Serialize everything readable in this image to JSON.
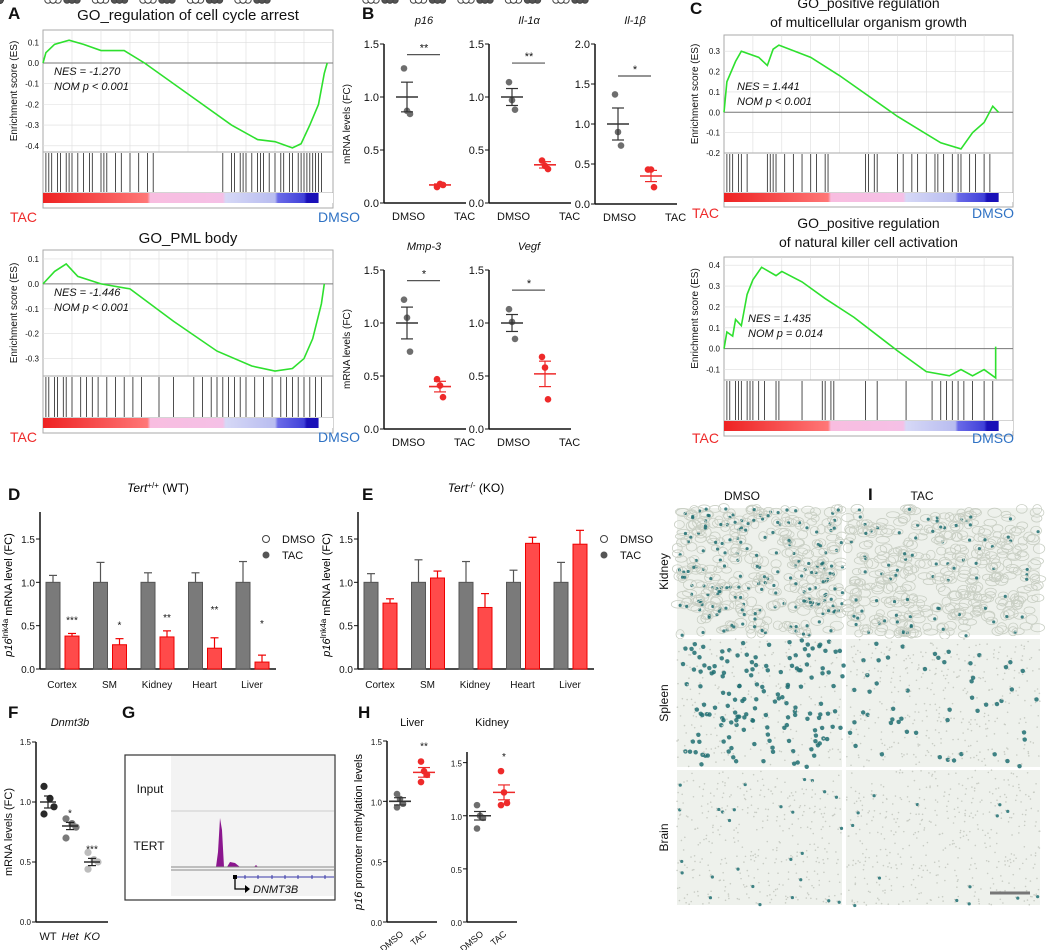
{
  "panel_labels": [
    "A",
    "B",
    "C",
    "D",
    "E",
    "F",
    "G",
    "H",
    "I"
  ],
  "colors": {
    "tac": "#ee2a2a",
    "dmso_text": "#2f72c4",
    "es_line": "#2ee02e",
    "dmso_point": "#6e6e6e",
    "bar_gray": "#7a7a7a",
    "bar_red": "#ff4a4a",
    "purple": "#8b168e",
    "stain": "#1f6e72"
  },
  "gsea": [
    {
      "title": [
        "GO_regulation of cell cycle arrest"
      ],
      "ylabel": "Enrichment score (ES)",
      "nes": "NES = -1.270",
      "nom": "NOM p < 0.001",
      "left": "TAC",
      "right": "DMSO",
      "ticks": [
        "0.1",
        "0.0",
        "-0.1",
        "-0.2",
        "-0.3",
        "-0.4"
      ],
      "ylim": [
        -0.43,
        0.14
      ],
      "curve": [
        [
          0,
          0
        ],
        [
          0.01,
          0.05
        ],
        [
          0.04,
          0.09
        ],
        [
          0.09,
          0.11
        ],
        [
          0.14,
          0.09
        ],
        [
          0.2,
          0.06
        ],
        [
          0.28,
          0.06
        ],
        [
          0.35,
          0.0
        ],
        [
          0.5,
          -0.15
        ],
        [
          0.65,
          -0.3
        ],
        [
          0.74,
          -0.37
        ],
        [
          0.8,
          -0.38
        ],
        [
          0.86,
          -0.41
        ],
        [
          0.89,
          -0.39
        ],
        [
          0.92,
          -0.3
        ],
        [
          0.95,
          -0.2
        ],
        [
          0.97,
          -0.05
        ],
        [
          0.98,
          0
        ]
      ],
      "hits": [
        0.01,
        0.02,
        0.03,
        0.05,
        0.06,
        0.08,
        0.09,
        0.1,
        0.12,
        0.14,
        0.16,
        0.17,
        0.2,
        0.21,
        0.22,
        0.25,
        0.27,
        0.3,
        0.33,
        0.36,
        0.38,
        0.62,
        0.65,
        0.66,
        0.68,
        0.69,
        0.7,
        0.72,
        0.74,
        0.75,
        0.76,
        0.78,
        0.8,
        0.82,
        0.83,
        0.85,
        0.86,
        0.88,
        0.89,
        0.9,
        0.91,
        0.92,
        0.93,
        0.94,
        0.95,
        0.96
      ]
    },
    {
      "title": [
        "GO_PML body"
      ],
      "ylabel": "Enrichment score (ES)",
      "nes": "NES = -1.446",
      "nom": "NOM p < 0.001",
      "left": "TAC",
      "right": "DMSO",
      "ticks": [
        "0.1",
        "0.0",
        "-0.1",
        "-0.2",
        "-0.3"
      ],
      "ylim": [
        -0.37,
        0.12
      ],
      "curve": [
        [
          0,
          0
        ],
        [
          0.04,
          0.05
        ],
        [
          0.08,
          0.08
        ],
        [
          0.12,
          0.03
        ],
        [
          0.2,
          0.0
        ],
        [
          0.3,
          -0.02
        ],
        [
          0.45,
          -0.15
        ],
        [
          0.6,
          -0.27
        ],
        [
          0.72,
          -0.33
        ],
        [
          0.8,
          -0.35
        ],
        [
          0.86,
          -0.34
        ],
        [
          0.9,
          -0.3
        ],
        [
          0.93,
          -0.22
        ],
        [
          0.96,
          -0.08
        ],
        [
          0.97,
          0
        ]
      ],
      "hits": [
        0.01,
        0.02,
        0.04,
        0.05,
        0.07,
        0.08,
        0.1,
        0.13,
        0.15,
        0.17,
        0.19,
        0.22,
        0.25,
        0.28,
        0.31,
        0.34,
        0.4,
        0.45,
        0.52,
        0.55,
        0.58,
        0.6,
        0.62,
        0.64,
        0.66,
        0.68,
        0.7,
        0.73,
        0.76,
        0.79,
        0.82,
        0.84,
        0.86,
        0.88,
        0.9,
        0.92,
        0.94,
        0.96
      ]
    },
    {
      "title": [
        "GO_positive regulation",
        "of multicellular organism growth"
      ],
      "ylabel": "Enrichment score (ES)",
      "nes": "NES = 1.441",
      "nom": "NOM p < 0.001",
      "left": "TAC",
      "right": "DMSO",
      "ticks": [
        "0.3",
        "0.2",
        "0.1",
        "0.0",
        "-0.1",
        "-0.2"
      ],
      "ylim": [
        -0.2,
        0.36
      ],
      "curve": [
        [
          0,
          0
        ],
        [
          0.01,
          0.15
        ],
        [
          0.04,
          0.25
        ],
        [
          0.06,
          0.3
        ],
        [
          0.12,
          0.27
        ],
        [
          0.15,
          0.23
        ],
        [
          0.17,
          0.31
        ],
        [
          0.19,
          0.33
        ],
        [
          0.3,
          0.27
        ],
        [
          0.4,
          0.18
        ],
        [
          0.6,
          -0.02
        ],
        [
          0.75,
          -0.15
        ],
        [
          0.82,
          -0.18
        ],
        [
          0.86,
          -0.1
        ],
        [
          0.9,
          -0.05
        ],
        [
          0.93,
          0.03
        ],
        [
          0.95,
          0
        ]
      ],
      "hits": [
        0.01,
        0.02,
        0.03,
        0.05,
        0.06,
        0.08,
        0.15,
        0.16,
        0.17,
        0.18,
        0.21,
        0.24,
        0.27,
        0.3,
        0.32,
        0.35,
        0.36,
        0.49,
        0.5,
        0.52,
        0.53,
        0.6,
        0.62,
        0.65,
        0.67,
        0.7,
        0.73,
        0.74,
        0.76,
        0.79,
        0.81,
        0.82,
        0.85,
        0.87,
        0.9,
        0.92
      ]
    },
    {
      "title": [
        "GO_positive regulation",
        "of natural killer cell activation"
      ],
      "ylabel": "Enrichment score (ES)",
      "nes": "NES = 1.435",
      "nom": "NOM p = 0.014",
      "left": "TAC",
      "right": "DMSO",
      "ticks": [
        "0.4",
        "0.3",
        "0.2",
        "0.1",
        "0.0",
        "-0.1"
      ],
      "ylim": [
        -0.15,
        0.42
      ],
      "curve": [
        [
          0,
          0
        ],
        [
          0.01,
          0.08
        ],
        [
          0.03,
          0.06
        ],
        [
          0.04,
          0.14
        ],
        [
          0.06,
          0.11
        ],
        [
          0.08,
          0.26
        ],
        [
          0.1,
          0.33
        ],
        [
          0.13,
          0.39
        ],
        [
          0.18,
          0.35
        ],
        [
          0.2,
          0.37
        ],
        [
          0.27,
          0.32
        ],
        [
          0.35,
          0.24
        ],
        [
          0.45,
          0.15
        ],
        [
          0.6,
          -0.01
        ],
        [
          0.7,
          -0.11
        ],
        [
          0.78,
          -0.13
        ],
        [
          0.82,
          -0.1
        ],
        [
          0.86,
          -0.13
        ],
        [
          0.9,
          -0.1
        ],
        [
          0.94,
          -0.14
        ],
        [
          0.94,
          0.01
        ]
      ],
      "hits": [
        0.01,
        0.02,
        0.04,
        0.05,
        0.06,
        0.08,
        0.09,
        0.1,
        0.12,
        0.14,
        0.18,
        0.19,
        0.27,
        0.34,
        0.35,
        0.37,
        0.38,
        0.49,
        0.53,
        0.63,
        0.72,
        0.75,
        0.77,
        0.79,
        0.81,
        0.83,
        0.86,
        0.9,
        0.93
      ]
    }
  ],
  "b_plots": [
    {
      "title": "p16",
      "ylim": [
        0,
        1.5
      ],
      "ticks": [
        "0.0",
        "0.5",
        "1.0",
        "1.5"
      ],
      "tickvals": [
        0,
        0.5,
        1,
        1.5
      ],
      "sig": "**",
      "sigy": 1.4,
      "dmso": {
        "mean": 1.0,
        "sem": 0.14,
        "points": [
          1.27,
          0.87,
          0.84
        ]
      },
      "tac": {
        "mean": 0.17,
        "sem": 0.01,
        "points": [
          0.15,
          0.18,
          0.17
        ]
      }
    },
    {
      "title": "Il-1α",
      "ylim": [
        0,
        1.5
      ],
      "ticks": [
        "0.0",
        "0.5",
        "1.0",
        "1.5"
      ],
      "tickvals": [
        0,
        0.5,
        1,
        1.5
      ],
      "sig": "**",
      "sigy": 1.32,
      "dmso": {
        "mean": 1.0,
        "sem": 0.08,
        "points": [
          1.14,
          0.97,
          0.88
        ]
      },
      "tac": {
        "mean": 0.36,
        "sem": 0.03,
        "points": [
          0.4,
          0.35,
          0.32
        ]
      }
    },
    {
      "title": "Il-1β",
      "ylim": [
        0,
        2.0
      ],
      "ticks": [
        "0.0",
        "0.5",
        "1.0",
        "1.5",
        "2.0"
      ],
      "tickvals": [
        0,
        0.5,
        1,
        1.5,
        2
      ],
      "sig": "*",
      "sigy": 1.6,
      "dmso": {
        "mean": 1.0,
        "sem": 0.2,
        "points": [
          1.37,
          0.9,
          0.73
        ]
      },
      "tac": {
        "mean": 0.35,
        "sem": 0.07,
        "points": [
          0.43,
          0.43,
          0.21
        ]
      }
    },
    {
      "title": "Mmp-3",
      "ylim": [
        0,
        1.5
      ],
      "ticks": [
        "0.0",
        "0.5",
        "1.0",
        "1.5"
      ],
      "tickvals": [
        0,
        0.5,
        1,
        1.5
      ],
      "sig": "*",
      "sigy": 1.4,
      "dmso": {
        "mean": 1.0,
        "sem": 0.15,
        "points": [
          1.22,
          1.05,
          0.73
        ]
      },
      "tac": {
        "mean": 0.4,
        "sem": 0.05,
        "points": [
          0.47,
          0.41,
          0.3
        ]
      }
    },
    {
      "title": "Vegf",
      "ylim": [
        0,
        1.5
      ],
      "ticks": [
        "0.0",
        "0.5",
        "1.0",
        "1.5"
      ],
      "tickvals": [
        0,
        0.5,
        1,
        1.5
      ],
      "sig": "*",
      "sigy": 1.31,
      "dmso": {
        "mean": 1.0,
        "sem": 0.08,
        "points": [
          1.13,
          1.01,
          0.85
        ]
      },
      "tac": {
        "mean": 0.52,
        "sem": 0.12,
        "points": [
          0.68,
          0.58,
          0.28
        ]
      }
    }
  ],
  "b_common": {
    "ylabel": "mRNA levels (FC)",
    "xlabels": [
      "DMSO",
      "TAC"
    ]
  },
  "bars": [
    {
      "title_gene": "Tert",
      "title_sup": "+/+",
      "title_suffix": " (WT)",
      "categories": [
        "Cortex",
        "SM",
        "Kidney",
        "Heart",
        "Liver"
      ],
      "dmso": {
        "means": [
          1.0,
          1.0,
          1.0,
          1.0,
          1.0
        ],
        "sem": [
          0.08,
          0.23,
          0.11,
          0.11,
          0.24
        ],
        "points": [
          [
            1.22,
            1.08,
            0.9,
            0.85
          ],
          [
            1.65,
            0.95,
            0.83,
            0.6
          ],
          [
            1.22,
            1.13,
            0.93,
            0.73
          ],
          [
            1.31,
            1.0,
            0.86,
            0.86
          ],
          [
            1.68,
            0.97,
            0.78,
            0.57
          ]
        ]
      },
      "tac": {
        "means": [
          0.38,
          0.28,
          0.37,
          0.24,
          0.08
        ],
        "sem": [
          0.03,
          0.07,
          0.07,
          0.12,
          0.08
        ],
        "points": [
          [
            0.42,
            0.4,
            0.38,
            0.35
          ],
          [
            0.4,
            0.38,
            0.23,
            0.17
          ],
          [
            0.51,
            0.4,
            0.36,
            0.22
          ],
          [
            0.56,
            0.33,
            0.06,
            0.04
          ],
          [
            0.32,
            0.02,
            0.01,
            0.01
          ]
        ]
      },
      "sig": [
        "***",
        "*",
        "**",
        "**",
        "*"
      ]
    },
    {
      "title_gene": "Tert",
      "title_sup": "-/-",
      "title_suffix": " (KO)",
      "categories": [
        "Cortex",
        "SM",
        "Kidney",
        "Heart",
        "Liver"
      ],
      "dmso": {
        "means": [
          1.0,
          1.0,
          1.0,
          1.0,
          1.0
        ],
        "sem": [
          0.1,
          0.26,
          0.24,
          0.14,
          0.23
        ],
        "points": [
          [
            1.2,
            1.03,
            1.0,
            0.72
          ],
          [
            1.38,
            1.0,
            0.88,
            0.5
          ],
          [
            1.34,
            0.88,
            0.86,
            0.52
          ],
          [
            1.16,
            1.02,
            1.02,
            0.7
          ],
          [
            1.3,
            1.0,
            0.81,
            0.5
          ]
        ]
      },
      "tac": {
        "means": [
          0.76,
          1.05,
          0.71,
          1.45,
          1.44
        ],
        "sem": [
          0.05,
          0.08,
          0.16,
          0.07,
          0.16
        ],
        "points": [
          [
            0.82,
            0.82,
            0.78,
            0.68
          ],
          [
            1.18,
            1.06,
            0.98,
            0.96
          ],
          [
            1.07,
            0.72,
            0.52,
            0.43
          ],
          [
            1.52,
            1.46,
            1.46,
            1.28
          ],
          [
            1.64,
            1.5,
            1.42,
            1.0
          ]
        ]
      },
      "sig": [
        "",
        "",
        "",
        "",
        ""
      ]
    }
  ],
  "bars_common": {
    "ylabel_gene": "p16",
    "ylabel_sup": "Ink4a",
    "ylabel_suffix": " mRNA level (FC)",
    "ticks": [
      "0.0",
      "0.5",
      "1.0",
      "1.5"
    ],
    "legend": [
      "DMSO",
      "TAC"
    ]
  },
  "f": {
    "title": "Dnmt3b",
    "ylabel": "mRNA levels (FC)",
    "ticks": [
      "0.0",
      "0.5",
      "1.0",
      "1.5"
    ],
    "categories": [
      "WT",
      "Het",
      "KO"
    ],
    "groups": [
      {
        "mean": 1.0,
        "sem": 0.05,
        "points": [
          1.13,
          1.03,
          0.96,
          0.9
        ],
        "color": "#2a2a2a",
        "sig": ""
      },
      {
        "mean": 0.8,
        "sem": 0.03,
        "points": [
          0.86,
          0.82,
          0.79,
          0.7
        ],
        "color": "#7a7a7a",
        "sig": "*"
      },
      {
        "mean": 0.5,
        "sem": 0.03,
        "points": [
          0.58,
          0.52,
          0.5,
          0.44
        ],
        "color": "#bdbdbd",
        "sig": "***"
      }
    ]
  },
  "g": {
    "tracks": [
      "Input",
      "TERT"
    ],
    "gene": "DNMT3B"
  },
  "h": [
    {
      "title": "Liver",
      "ylim": [
        0,
        1.5
      ],
      "ticks": [
        "0.0",
        "0.5",
        "1.0",
        "1.5"
      ],
      "tickvals": [
        0,
        0.5,
        1,
        1.5
      ],
      "sig": "**",
      "dmso": {
        "mean": 1.0,
        "sem": 0.03,
        "points": [
          1.06,
          1.02,
          0.98,
          0.95
        ]
      },
      "tac": {
        "mean": 1.24,
        "sem": 0.04,
        "points": [
          1.33,
          1.25,
          1.22,
          1.16
        ]
      }
    },
    {
      "title": "Kidney",
      "ylim": [
        0,
        1.6
      ],
      "ticks": [
        "0.0",
        "0.5",
        "1.0",
        "1.5"
      ],
      "tickvals": [
        0,
        0.5,
        1,
        1.5
      ],
      "sig": "*",
      "dmso": {
        "mean": 1.0,
        "sem": 0.04,
        "points": [
          1.1,
          1.0,
          0.98,
          0.88
        ]
      },
      "tac": {
        "mean": 1.22,
        "sem": 0.07,
        "points": [
          1.42,
          1.22,
          1.12,
          1.1
        ]
      }
    }
  ],
  "h_common": {
    "ylabel_gene": "p16",
    "ylabel_suffix": " promoter methylation levels",
    "xlabels": [
      "DMSO",
      "TAC"
    ]
  },
  "i": {
    "columns": [
      "DMSO",
      "TAC"
    ],
    "rows": [
      "Kidney",
      "Spleen",
      "Brain"
    ],
    "density": [
      [
        0.55,
        0.2
      ],
      [
        0.45,
        0.12
      ],
      [
        0.06,
        0.03
      ]
    ]
  }
}
